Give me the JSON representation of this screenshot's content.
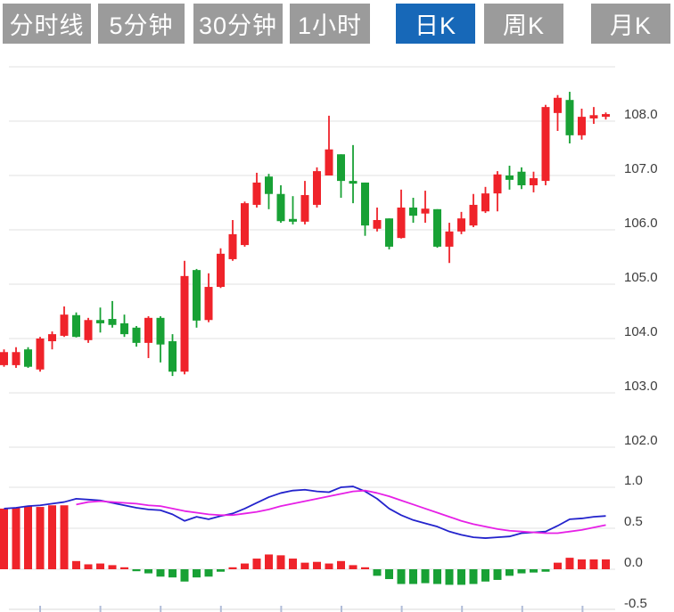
{
  "tabs": [
    {
      "label": "分时线",
      "active": false
    },
    {
      "label": "5分钟",
      "active": false
    },
    {
      "label": "30分钟",
      "active": false
    },
    {
      "label": "1小时",
      "active": false
    },
    {
      "label": "日K",
      "active": true
    },
    {
      "label": "周K",
      "active": false
    },
    {
      "label": "月K",
      "active": false
    }
  ],
  "colors": {
    "up": "#ef232a",
    "down": "#18a135",
    "dif_line": "#2323cc",
    "dea_line": "#e620e6",
    "tab_bg": "#9b9b9b",
    "tab_active_bg": "#1768b8",
    "tab_text": "#ffffff",
    "grid": "#e6e6e6",
    "axis_label": "#3d3d3d",
    "axis_tick": "#b0bcd8",
    "background": "#ffffff"
  },
  "chart_data": {
    "type": "candlestick",
    "title": "",
    "legend_position": "none",
    "grid": true,
    "main_panel": {
      "y_axis_labels": [
        "108.0",
        "107.0",
        "106.0",
        "105.0",
        "104.0",
        "103.0",
        "102.0"
      ],
      "y_gridline_values": [
        109,
        108,
        107,
        106,
        105,
        104,
        103,
        102
      ],
      "ylim": [
        101.5,
        109.0
      ],
      "candles": [
        {
          "o": 103.51,
          "h": 103.8,
          "l": 103.48,
          "c": 103.75
        },
        {
          "o": 103.51,
          "h": 103.84,
          "l": 103.46,
          "c": 103.75
        },
        {
          "o": 103.8,
          "h": 103.84,
          "l": 103.46,
          "c": 103.48
        },
        {
          "o": 103.43,
          "h": 104.03,
          "l": 103.39,
          "c": 104.0
        },
        {
          "o": 103.95,
          "h": 104.13,
          "l": 103.8,
          "c": 104.08
        },
        {
          "o": 104.05,
          "h": 104.59,
          "l": 104.03,
          "c": 104.44
        },
        {
          "o": 104.43,
          "h": 104.48,
          "l": 104.02,
          "c": 104.03
        },
        {
          "o": 103.97,
          "h": 104.38,
          "l": 103.92,
          "c": 104.34
        },
        {
          "o": 104.34,
          "h": 104.57,
          "l": 104.11,
          "c": 104.28
        },
        {
          "o": 104.36,
          "h": 104.69,
          "l": 104.2,
          "c": 104.25
        },
        {
          "o": 104.28,
          "h": 104.44,
          "l": 104.03,
          "c": 104.08
        },
        {
          "o": 104.2,
          "h": 104.23,
          "l": 103.85,
          "c": 103.92
        },
        {
          "o": 103.92,
          "h": 104.41,
          "l": 103.64,
          "c": 104.38
        },
        {
          "o": 104.38,
          "h": 104.41,
          "l": 103.56,
          "c": 103.89
        },
        {
          "o": 103.95,
          "h": 104.08,
          "l": 103.31,
          "c": 103.39
        },
        {
          "o": 103.39,
          "h": 105.43,
          "l": 103.34,
          "c": 105.15
        },
        {
          "o": 105.26,
          "h": 105.28,
          "l": 104.2,
          "c": 104.33
        },
        {
          "o": 104.34,
          "h": 105.2,
          "l": 104.3,
          "c": 104.95
        },
        {
          "o": 104.95,
          "h": 105.66,
          "l": 104.93,
          "c": 105.56
        },
        {
          "o": 105.46,
          "h": 106.18,
          "l": 105.43,
          "c": 105.92
        },
        {
          "o": 105.72,
          "h": 106.52,
          "l": 105.69,
          "c": 106.49
        },
        {
          "o": 106.46,
          "h": 107.05,
          "l": 106.41,
          "c": 106.87
        },
        {
          "o": 106.98,
          "h": 107.03,
          "l": 106.38,
          "c": 106.66
        },
        {
          "o": 106.66,
          "h": 106.82,
          "l": 106.13,
          "c": 106.16
        },
        {
          "o": 106.2,
          "h": 106.62,
          "l": 106.1,
          "c": 106.15
        },
        {
          "o": 106.15,
          "h": 106.9,
          "l": 106.1,
          "c": 106.64
        },
        {
          "o": 106.46,
          "h": 107.15,
          "l": 106.41,
          "c": 107.08
        },
        {
          "o": 107.0,
          "h": 108.1,
          "l": 107.0,
          "c": 107.48
        },
        {
          "o": 107.39,
          "h": 107.39,
          "l": 106.59,
          "c": 106.9
        },
        {
          "o": 106.9,
          "h": 107.56,
          "l": 106.49,
          "c": 106.85
        },
        {
          "o": 106.87,
          "h": 106.87,
          "l": 105.89,
          "c": 106.08
        },
        {
          "o": 106.02,
          "h": 106.41,
          "l": 105.97,
          "c": 106.18
        },
        {
          "o": 106.21,
          "h": 106.21,
          "l": 105.64,
          "c": 105.69
        },
        {
          "o": 105.85,
          "h": 106.74,
          "l": 105.84,
          "c": 106.41
        },
        {
          "o": 106.41,
          "h": 106.59,
          "l": 106.13,
          "c": 106.26
        },
        {
          "o": 106.3,
          "h": 106.72,
          "l": 106.13,
          "c": 106.39
        },
        {
          "o": 106.38,
          "h": 106.38,
          "l": 105.67,
          "c": 105.69
        },
        {
          "o": 105.69,
          "h": 106.13,
          "l": 105.39,
          "c": 105.97
        },
        {
          "o": 105.97,
          "h": 106.33,
          "l": 105.92,
          "c": 106.21
        },
        {
          "o": 106.08,
          "h": 106.66,
          "l": 106.05,
          "c": 106.46
        },
        {
          "o": 106.34,
          "h": 106.79,
          "l": 106.31,
          "c": 106.67
        },
        {
          "o": 106.67,
          "h": 107.08,
          "l": 106.34,
          "c": 107.02
        },
        {
          "o": 107.0,
          "h": 107.18,
          "l": 106.74,
          "c": 106.92
        },
        {
          "o": 107.07,
          "h": 107.15,
          "l": 106.75,
          "c": 106.82
        },
        {
          "o": 106.82,
          "h": 107.07,
          "l": 106.69,
          "c": 106.95
        },
        {
          "o": 106.9,
          "h": 108.3,
          "l": 106.82,
          "c": 108.26
        },
        {
          "o": 108.15,
          "h": 108.48,
          "l": 107.82,
          "c": 108.43
        },
        {
          "o": 108.39,
          "h": 108.54,
          "l": 107.59,
          "c": 107.74
        },
        {
          "o": 107.74,
          "h": 108.23,
          "l": 107.66,
          "c": 108.08
        },
        {
          "o": 108.05,
          "h": 108.26,
          "l": 107.95,
          "c": 108.11
        },
        {
          "o": 108.08,
          "h": 108.16,
          "l": 108.03,
          "c": 108.13
        }
      ]
    },
    "macd_panel": {
      "y_axis_labels": [
        "1.0",
        "0.5",
        "0.0",
        "-0.5"
      ],
      "y_gridline_values": [
        1.0,
        0.5,
        0.0,
        -0.5
      ],
      "ylim": [
        -0.55,
        1.1
      ],
      "histogram": [
        0.74,
        0.75,
        0.77,
        0.76,
        0.78,
        0.78,
        0.1,
        0.06,
        0.07,
        0.05,
        0.02,
        -0.02,
        -0.05,
        -0.09,
        -0.1,
        -0.15,
        -0.1,
        -0.09,
        -0.03,
        0.02,
        0.07,
        0.13,
        0.18,
        0.17,
        0.13,
        0.08,
        0.09,
        0.07,
        0.1,
        0.05,
        0.02,
        -0.08,
        -0.12,
        -0.18,
        -0.18,
        -0.17,
        -0.18,
        -0.19,
        -0.19,
        -0.18,
        -0.15,
        -0.13,
        -0.08,
        -0.05,
        -0.04,
        -0.03,
        0.08,
        0.14,
        0.12,
        0.12,
        0.12
      ],
      "dif": [
        0.74,
        0.75,
        0.77,
        0.78,
        0.8,
        0.82,
        0.86,
        0.85,
        0.84,
        0.81,
        0.78,
        0.75,
        0.73,
        0.72,
        0.67,
        0.59,
        0.64,
        0.61,
        0.65,
        0.68,
        0.74,
        0.81,
        0.88,
        0.93,
        0.96,
        0.97,
        0.95,
        0.94,
        1.0,
        1.01,
        0.95,
        0.86,
        0.74,
        0.66,
        0.6,
        0.56,
        0.52,
        0.46,
        0.42,
        0.39,
        0.38,
        0.39,
        0.4,
        0.44,
        0.45,
        0.46,
        0.53,
        0.61,
        0.62,
        0.64,
        0.65
      ],
      "dea": [
        null,
        null,
        null,
        null,
        null,
        null,
        0.79,
        0.82,
        0.83,
        0.82,
        0.81,
        0.8,
        0.78,
        0.77,
        0.74,
        0.71,
        0.69,
        0.67,
        0.66,
        0.66,
        0.68,
        0.7,
        0.73,
        0.77,
        0.8,
        0.83,
        0.86,
        0.89,
        0.92,
        0.95,
        0.96,
        0.93,
        0.89,
        0.84,
        0.79,
        0.74,
        0.69,
        0.64,
        0.59,
        0.55,
        0.52,
        0.49,
        0.47,
        0.46,
        0.45,
        0.44,
        0.44,
        0.46,
        0.48,
        0.51,
        0.54
      ]
    }
  }
}
